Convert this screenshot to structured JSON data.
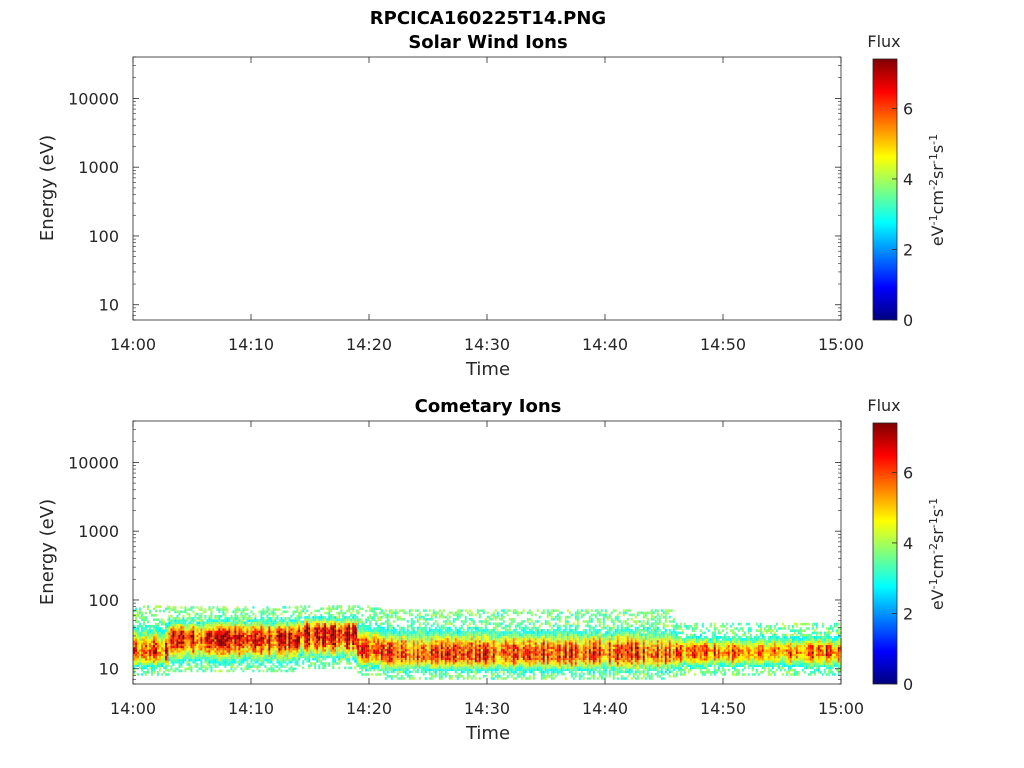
{
  "figure_title": "RPCICA160225T14.PNG",
  "colormap": [
    "#00007f",
    "#0000ff",
    "#007fff",
    "#00ffff",
    "#7fff7f",
    "#ffff00",
    "#ff7f00",
    "#ff0000",
    "#7f0000"
  ],
  "chart_data": [
    {
      "type": "heatmap",
      "title": "Solar Wind Ions",
      "xlabel": "Time",
      "ylabel": "Energy (eV)",
      "x_ticks": [
        "14:00",
        "14:10",
        "14:20",
        "14:30",
        "14:40",
        "14:50",
        "15:00"
      ],
      "xlim": [
        "14:00",
        "15:00"
      ],
      "y_scale": "log",
      "y_ticks": [
        "10",
        "100",
        "1000",
        "10000"
      ],
      "ylim": [
        6,
        40000
      ],
      "colorbar": {
        "title": "Flux",
        "label": "eV-1cm-2sr-1s-1",
        "ticks": [
          "0",
          "2",
          "4",
          "6"
        ],
        "range": [
          0,
          7.4
        ]
      },
      "flux_bands": []
    },
    {
      "type": "heatmap",
      "title": "Cometary Ions",
      "xlabel": "Time",
      "ylabel": "Energy (eV)",
      "x_ticks": [
        "14:00",
        "14:10",
        "14:20",
        "14:30",
        "14:40",
        "14:50",
        "15:00"
      ],
      "xlim": [
        "14:00",
        "15:00"
      ],
      "y_scale": "log",
      "y_ticks": [
        "10",
        "100",
        "1000",
        "10000"
      ],
      "ylim": [
        6,
        40000
      ],
      "colorbar": {
        "title": "Flux",
        "label": "eV-1cm-2sr-1s-1",
        "ticks": [
          "0",
          "2",
          "4",
          "6"
        ],
        "range": [
          0,
          7.4
        ]
      },
      "flux_bands": [
        {
          "t_start": "14:00",
          "t_end": "14:03",
          "e_low": 8,
          "e_high": 80,
          "e_peak": 17,
          "peak_flux": 6.4
        },
        {
          "t_start": "14:03",
          "t_end": "14:14",
          "e_low": 9,
          "e_high": 80,
          "e_peak": 27,
          "peak_flux": 6.9
        },
        {
          "t_start": "14:14",
          "t_end": "14:19",
          "e_low": 10,
          "e_high": 80,
          "e_peak": 32,
          "peak_flux": 7.3
        },
        {
          "t_start": "14:19",
          "t_end": "14:21",
          "e_low": 8,
          "e_high": 80,
          "e_peak": 18,
          "peak_flux": 6.6
        },
        {
          "t_start": "14:21",
          "t_end": "14:46",
          "e_low": 7,
          "e_high": 70,
          "e_peak": 16,
          "peak_flux": 6.5
        },
        {
          "t_start": "14:46",
          "t_end": "15:00",
          "e_low": 8,
          "e_high": 45,
          "e_peak": 17,
          "peak_flux": 6.2
        }
      ]
    }
  ]
}
